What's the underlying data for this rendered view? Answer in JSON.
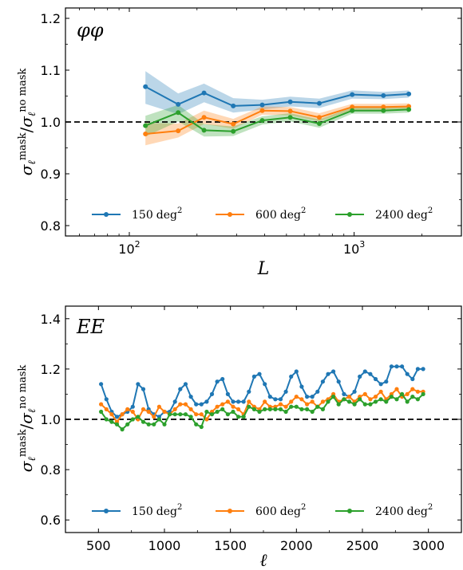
{
  "colors": {
    "blue": "#1f77b4",
    "orange": "#ff7f0e",
    "green": "#2ca02c",
    "reference": "#000000"
  },
  "chart_data": [
    {
      "type": "line",
      "panel_label": "φφ",
      "xlabel": "L",
      "ylabel": {
        "sym": "σ",
        "sub": "ℓ",
        "sup_num": "mask",
        "sup_den": "no mask"
      },
      "xscale": "log",
      "xlim": [
        52,
        3000
      ],
      "ylim": [
        0.78,
        1.22
      ],
      "xticks": [
        100,
        1000
      ],
      "xtick_labels": [
        "10",
        "10"
      ],
      "xtick_exp": [
        "2",
        "3"
      ],
      "yticks": [
        0.8,
        0.9,
        1.0,
        1.1,
        1.2
      ],
      "ytick_labels": [
        "0.8",
        "0.9",
        "1.0",
        "1.1",
        "1.2"
      ],
      "reference_line": 1.0,
      "legend": {
        "position": "bottom",
        "unit": "deg",
        "unit_exp": "2"
      },
      "x": [
        118,
        165,
        215,
        290,
        390,
        520,
        700,
        980,
        1350,
        1750
      ],
      "series": [
        {
          "name": "150",
          "color": "#1f77b4",
          "values": [
            1.068,
            1.034,
            1.056,
            1.031,
            1.033,
            1.039,
            1.036,
            1.053,
            1.051,
            1.054
          ],
          "band_lo": [
            1.035,
            1.015,
            1.038,
            1.018,
            1.024,
            1.03,
            1.027,
            1.045,
            1.044,
            1.047
          ],
          "band_hi": [
            1.098,
            1.055,
            1.074,
            1.046,
            1.043,
            1.049,
            1.045,
            1.061,
            1.058,
            1.061
          ]
        },
        {
          "name": "600",
          "color": "#ff7f0e",
          "values": [
            0.977,
            0.983,
            1.009,
            0.996,
            1.022,
            1.021,
            1.009,
            1.029,
            1.029,
            1.03
          ],
          "band_lo": [
            0.955,
            0.97,
            0.996,
            0.987,
            1.014,
            1.013,
            1.001,
            1.023,
            1.023,
            1.024
          ],
          "band_hi": [
            0.998,
            0.997,
            1.022,
            1.006,
            1.03,
            1.029,
            1.017,
            1.035,
            1.035,
            1.036
          ]
        },
        {
          "name": "2400",
          "color": "#2ca02c",
          "values": [
            0.993,
            1.018,
            0.984,
            0.982,
            1.003,
            1.009,
            0.997,
            1.022,
            1.022,
            1.024
          ],
          "band_lo": [
            0.972,
            1.001,
            0.972,
            0.973,
            0.995,
            1.001,
            0.989,
            1.016,
            1.016,
            1.018
          ],
          "band_hi": [
            1.012,
            1.033,
            0.996,
            0.991,
            1.011,
            1.017,
            1.005,
            1.028,
            1.028,
            1.03
          ]
        }
      ]
    },
    {
      "type": "line",
      "panel_label": "EE",
      "xlabel": "ℓ",
      "ylabel": {
        "sym": "σ",
        "sub": "ℓ",
        "sup_num": "mask",
        "sup_den": "no mask"
      },
      "xscale": "linear",
      "xlim": [
        250,
        3250
      ],
      "ylim": [
        0.55,
        1.45
      ],
      "xticks": [
        500,
        1000,
        1500,
        2000,
        2500,
        3000
      ],
      "xtick_labels": [
        "500",
        "1000",
        "1500",
        "2000",
        "2500",
        "3000"
      ],
      "yticks": [
        0.6,
        0.8,
        1.0,
        1.2,
        1.4
      ],
      "ytick_labels": [
        "0.6",
        "0.8",
        "1.0",
        "1.2",
        "1.4"
      ],
      "reference_line": 1.0,
      "legend": {
        "position": "bottom",
        "unit": "deg",
        "unit_exp": "2"
      },
      "x": [
        520,
        560,
        600,
        640,
        680,
        720,
        760,
        800,
        840,
        880,
        920,
        960,
        1000,
        1040,
        1080,
        1120,
        1160,
        1200,
        1240,
        1280,
        1320,
        1360,
        1400,
        1440,
        1480,
        1520,
        1560,
        1600,
        1640,
        1680,
        1720,
        1760,
        1800,
        1840,
        1880,
        1920,
        1960,
        2000,
        2040,
        2080,
        2120,
        2160,
        2200,
        2240,
        2280,
        2320,
        2360,
        2400,
        2440,
        2480,
        2520,
        2560,
        2600,
        2640,
        2680,
        2720,
        2760,
        2800,
        2840,
        2880,
        2920,
        2960
      ],
      "series": [
        {
          "name": "150",
          "color": "#1f77b4",
          "values": [
            1.14,
            1.08,
            1.03,
            1.01,
            1.02,
            1.03,
            1.05,
            1.14,
            1.12,
            1.04,
            1.02,
            1.01,
            1.03,
            1.03,
            1.07,
            1.12,
            1.14,
            1.09,
            1.06,
            1.06,
            1.07,
            1.1,
            1.15,
            1.16,
            1.1,
            1.07,
            1.07,
            1.07,
            1.11,
            1.17,
            1.18,
            1.14,
            1.09,
            1.08,
            1.08,
            1.11,
            1.17,
            1.19,
            1.13,
            1.09,
            1.09,
            1.11,
            1.15,
            1.18,
            1.19,
            1.15,
            1.1,
            1.09,
            1.11,
            1.17,
            1.19,
            1.18,
            1.16,
            1.14,
            1.15,
            1.21,
            1.21,
            1.21,
            1.18,
            1.16,
            1.2,
            1.2
          ]
        },
        {
          "name": "600",
          "color": "#ff7f0e",
          "values": [
            1.06,
            1.04,
            1.02,
            0.99,
            1.02,
            1.04,
            1.03,
            1.0,
            1.04,
            1.03,
            1.01,
            1.05,
            1.03,
            1.02,
            1.04,
            1.06,
            1.06,
            1.04,
            1.02,
            1.02,
            1.0,
            1.03,
            1.05,
            1.06,
            1.07,
            1.05,
            1.04,
            1.02,
            1.07,
            1.05,
            1.04,
            1.07,
            1.05,
            1.05,
            1.06,
            1.05,
            1.07,
            1.09,
            1.08,
            1.06,
            1.07,
            1.05,
            1.07,
            1.08,
            1.1,
            1.07,
            1.08,
            1.09,
            1.07,
            1.09,
            1.1,
            1.08,
            1.09,
            1.11,
            1.08,
            1.1,
            1.12,
            1.09,
            1.1,
            1.12,
            1.11,
            1.11
          ]
        },
        {
          "name": "2400",
          "color": "#2ca02c",
          "values": [
            1.03,
            1.0,
            0.99,
            0.98,
            0.96,
            0.98,
            1.0,
            1.01,
            0.99,
            0.98,
            0.98,
            1.0,
            0.98,
            1.02,
            1.02,
            1.02,
            1.02,
            1.01,
            0.98,
            0.97,
            1.03,
            1.02,
            1.03,
            1.04,
            1.02,
            1.03,
            1.01,
            1.01,
            1.05,
            1.04,
            1.03,
            1.04,
            1.04,
            1.04,
            1.04,
            1.03,
            1.05,
            1.05,
            1.04,
            1.04,
            1.03,
            1.05,
            1.04,
            1.07,
            1.09,
            1.06,
            1.08,
            1.07,
            1.06,
            1.08,
            1.06,
            1.06,
            1.07,
            1.08,
            1.07,
            1.09,
            1.08,
            1.1,
            1.07,
            1.09,
            1.08,
            1.1
          ]
        }
      ]
    }
  ]
}
